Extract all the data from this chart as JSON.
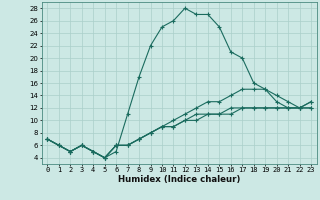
{
  "xlabel": "Humidex (Indice chaleur)",
  "bg_color": "#cce8e4",
  "line_color": "#1a6b5e",
  "grid_color": "#aacfca",
  "x_data": [
    0,
    1,
    2,
    3,
    4,
    5,
    6,
    7,
    8,
    9,
    10,
    11,
    12,
    13,
    14,
    15,
    16,
    17,
    18,
    19,
    20,
    21,
    22,
    23
  ],
  "series": [
    [
      7,
      6,
      5,
      6,
      5,
      4,
      5,
      11,
      17,
      22,
      25,
      26,
      28,
      27,
      27,
      25,
      21,
      20,
      16,
      15,
      13,
      12,
      12,
      13
    ],
    [
      7,
      6,
      5,
      6,
      5,
      4,
      6,
      6,
      7,
      8,
      9,
      10,
      11,
      12,
      13,
      13,
      14,
      15,
      15,
      15,
      14,
      13,
      12,
      13
    ],
    [
      7,
      6,
      5,
      6,
      5,
      4,
      6,
      6,
      7,
      8,
      9,
      9,
      10,
      10,
      11,
      11,
      11,
      12,
      12,
      12,
      12,
      12,
      12,
      12
    ],
    [
      7,
      6,
      5,
      6,
      5,
      4,
      6,
      6,
      7,
      8,
      9,
      9,
      10,
      11,
      11,
      11,
      12,
      12,
      12,
      12,
      12,
      12,
      12,
      12
    ]
  ],
  "ylim": [
    3,
    29
  ],
  "xlim": [
    -0.5,
    23.5
  ],
  "yticks": [
    4,
    6,
    8,
    10,
    12,
    14,
    16,
    18,
    20,
    22,
    24,
    26,
    28
  ],
  "xtick_labels": [
    "0",
    "1",
    "2",
    "3",
    "4",
    "5",
    "6",
    "7",
    "8",
    "9",
    "10",
    "11",
    "12",
    "13",
    "14",
    "15",
    "16",
    "17",
    "18",
    "19",
    "20",
    "21",
    "22",
    "23"
  ],
  "tick_fontsize": 5.0,
  "xlabel_fontsize": 6.2,
  "linewidth": 0.8,
  "markersize": 3.0
}
